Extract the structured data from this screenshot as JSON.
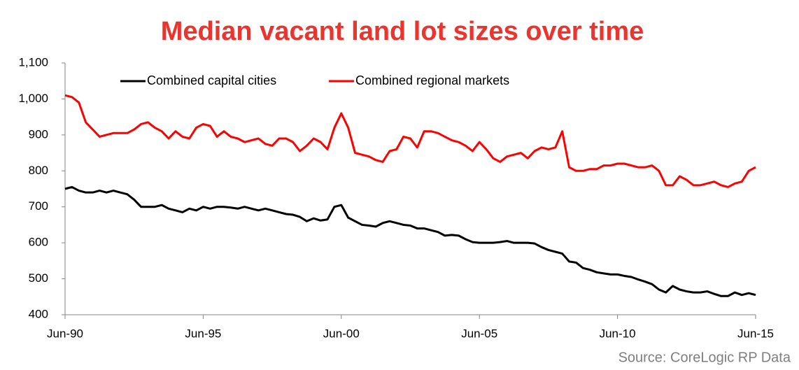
{
  "chart_data": {
    "type": "line",
    "title": "Median vacant land lot sizes over time",
    "source": "Source: CoreLogic RP Data",
    "legend": "top-left",
    "grid": false,
    "categories": [
      "Jun-90",
      null,
      null,
      null,
      null,
      null,
      null,
      null,
      null,
      null,
      null,
      null,
      null,
      null,
      null,
      null,
      null,
      null,
      null,
      null,
      "Jun-95",
      null,
      null,
      null,
      null,
      null,
      null,
      null,
      null,
      null,
      null,
      null,
      null,
      null,
      null,
      null,
      null,
      null,
      null,
      null,
      "Jun-00",
      null,
      null,
      null,
      null,
      null,
      null,
      null,
      null,
      null,
      null,
      null,
      null,
      null,
      null,
      null,
      null,
      null,
      null,
      null,
      "Jun-05",
      null,
      null,
      null,
      null,
      null,
      null,
      null,
      null,
      null,
      null,
      null,
      null,
      null,
      null,
      null,
      null,
      null,
      null,
      null,
      "Jun-10",
      null,
      null,
      null,
      null,
      null,
      null,
      null,
      null,
      null,
      null,
      null,
      null,
      null,
      null,
      null,
      null,
      null,
      null,
      null,
      "Jun-15"
    ],
    "ylim": [
      400,
      1100
    ],
    "yticks": [
      400,
      500,
      600,
      700,
      800,
      900,
      {
        "value": 1000,
        "label": "1,000"
      },
      {
        "value": 1100,
        "label": "1,100"
      }
    ],
    "series": [
      {
        "name": "Combined capital cities",
        "color": "#000000",
        "values": [
          750,
          755,
          745,
          740,
          740,
          745,
          740,
          745,
          740,
          735,
          720,
          700,
          700,
          700,
          705,
          695,
          690,
          685,
          695,
          690,
          700,
          695,
          700,
          700,
          698,
          695,
          700,
          695,
          690,
          695,
          690,
          685,
          680,
          678,
          672,
          660,
          668,
          662,
          665,
          700,
          705,
          670,
          660,
          650,
          648,
          645,
          655,
          660,
          655,
          650,
          648,
          640,
          640,
          635,
          630,
          620,
          622,
          620,
          610,
          602,
          600,
          600,
          600,
          602,
          605,
          600,
          600,
          600,
          598,
          588,
          580,
          575,
          570,
          548,
          545,
          530,
          525,
          518,
          515,
          512,
          512,
          508,
          505,
          498,
          492,
          485,
          470,
          462,
          480,
          470,
          465,
          462,
          462,
          465,
          458,
          452,
          452,
          462,
          455,
          460,
          455
        ]
      },
      {
        "name": "Combined regional markets",
        "color": "#ff0000",
        "values": [
          1010,
          1005,
          990,
          935,
          915,
          895,
          900,
          905,
          905,
          905,
          915,
          930,
          935,
          920,
          910,
          890,
          910,
          895,
          890,
          920,
          930,
          925,
          895,
          910,
          895,
          890,
          880,
          885,
          890,
          875,
          870,
          890,
          890,
          880,
          855,
          870,
          890,
          880,
          860,
          920,
          960,
          920,
          850,
          845,
          840,
          830,
          825,
          855,
          860,
          895,
          890,
          865,
          910,
          910,
          905,
          895,
          885,
          880,
          870,
          855,
          880,
          860,
          835,
          825,
          840,
          845,
          850,
          835,
          855,
          865,
          860,
          865,
          910,
          810,
          800,
          800,
          805,
          805,
          815,
          815,
          820,
          820,
          815,
          810,
          810,
          815,
          800,
          760,
          760,
          785,
          775,
          760,
          760,
          765,
          770,
          760,
          755,
          765,
          770,
          800,
          810
        ]
      }
    ]
  }
}
